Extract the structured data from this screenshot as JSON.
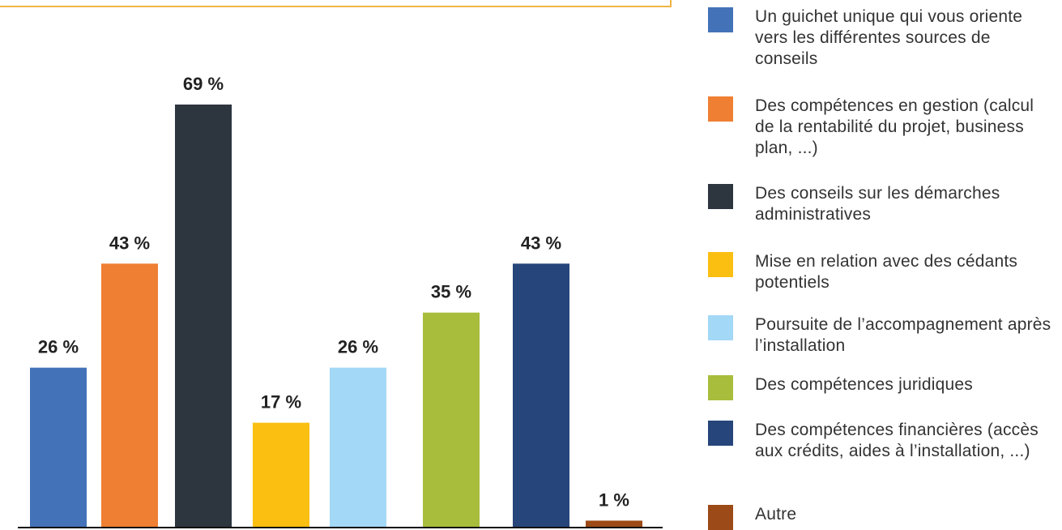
{
  "chart_data": {
    "type": "bar",
    "categories": [
      "Un guichet unique qui vous oriente vers les différentes sources de conseils",
      "Des compétences en gestion (calcul de la rentabilité du projet, business plan, ...)",
      "Des conseils sur les démarches administratives",
      "Mise en relation avec des cédants potentiels",
      "Poursuite de l’accompagnement après l’installation",
      "Des compétences juridiques",
      "Des compétences financières (accès aux crédits, aides à l’installation, ...)",
      "Autre"
    ],
    "values": [
      26,
      43,
      69,
      17,
      26,
      35,
      43,
      1
    ],
    "value_labels": [
      "26 %",
      "43 %",
      "69 %",
      "17 %",
      "26 %",
      "35 %",
      "43 %",
      "1 %"
    ],
    "colors": [
      "#4472b8",
      "#ef7f33",
      "#2d353f",
      "#fbbf12",
      "#a3d8f6",
      "#a9bd3c",
      "#26457a",
      "#9c4a17"
    ]
  }
}
